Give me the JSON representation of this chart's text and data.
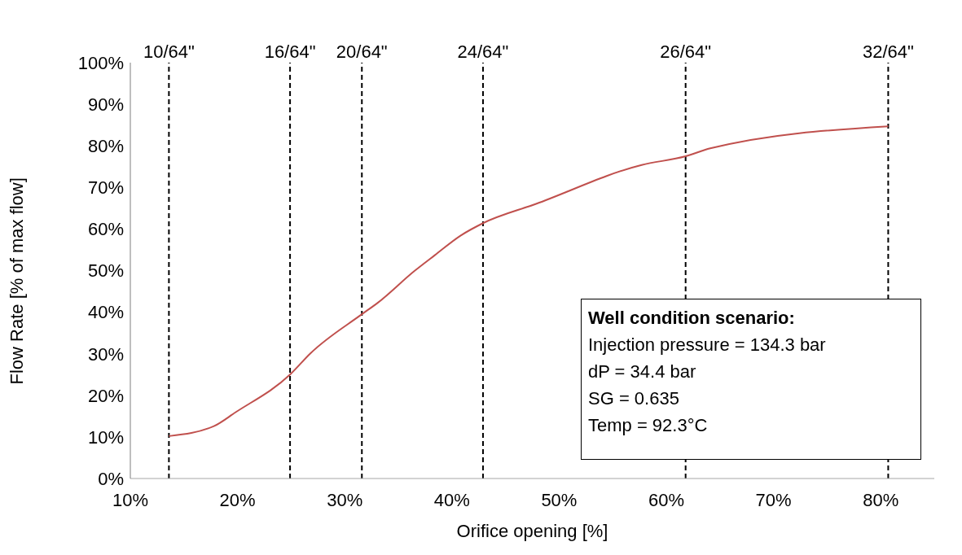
{
  "chart_data": {
    "type": "line",
    "xlabel": "Orifice opening [%]",
    "ylabel": "Flow Rate [% of max flow]",
    "x": [
      13.6,
      17.8,
      19.8,
      24.9,
      26.8,
      31.6,
      33.1,
      36.5,
      38.4,
      40.8,
      42.9,
      47.8,
      57.7,
      61.8,
      64.1,
      80.7
    ],
    "series": [
      {
        "color": "#c0504d",
        "values": [
          10.2,
          12.6,
          15.9,
          25.0,
          30.1,
          39.5,
          42.3,
          49.9,
          53.7,
          58.4,
          61.4,
          66.0,
          75.4,
          77.5,
          79.4,
          84.7
        ]
      }
    ],
    "xlim": [
      10,
      85
    ],
    "ylim": [
      0,
      100
    ],
    "xticks": [
      {
        "value": 10,
        "label": "10%"
      },
      {
        "value": 20,
        "label": "20%"
      },
      {
        "value": 30,
        "label": "30%"
      },
      {
        "value": 40,
        "label": "40%"
      },
      {
        "value": 50,
        "label": "50%"
      },
      {
        "value": 60,
        "label": "60%"
      },
      {
        "value": 70,
        "label": "70%"
      },
      {
        "value": 80,
        "label": "80%"
      }
    ],
    "yticks": [
      {
        "value": 0,
        "label": "0%"
      },
      {
        "value": 10,
        "label": "10%"
      },
      {
        "value": 20,
        "label": "20%"
      },
      {
        "value": 30,
        "label": "30%"
      },
      {
        "value": 40,
        "label": "40%"
      },
      {
        "value": 50,
        "label": "50%"
      },
      {
        "value": 60,
        "label": "60%"
      },
      {
        "value": 70,
        "label": "70%"
      },
      {
        "value": 80,
        "label": "80%"
      },
      {
        "value": 90,
        "label": "90%"
      },
      {
        "value": 100,
        "label": "100%"
      }
    ],
    "ref_lines": [
      {
        "axis": "x",
        "value": 13.6,
        "color": "#000000",
        "line_style": "dashed"
      },
      {
        "axis": "x",
        "value": 24.9,
        "color": "#000000",
        "line_style": "dashed"
      },
      {
        "axis": "x",
        "value": 31.6,
        "color": "#000000",
        "line_style": "dashed"
      },
      {
        "axis": "x",
        "value": 42.9,
        "color": "#000000",
        "line_style": "dashed"
      },
      {
        "axis": "x",
        "value": 61.8,
        "color": "#000000",
        "line_style": "dashed"
      },
      {
        "axis": "x",
        "value": 80.7,
        "color": "#000000",
        "line_style": "dashed"
      }
    ],
    "annotations": [
      {
        "text": "10/64\"",
        "x": 13.6,
        "y": 100
      },
      {
        "text": "16/64\"",
        "x": 24.9,
        "y": 100
      },
      {
        "text": "20/64\"",
        "x": 31.6,
        "y": 100
      },
      {
        "text": "24/64\"",
        "x": 42.9,
        "y": 100
      },
      {
        "text": "26/64\"",
        "x": 61.8,
        "y": 100
      },
      {
        "text": "32/64\"",
        "x": 80.7,
        "y": 100
      },
      "Well condition scenario:",
      "Injection pressure = 134.3 bar",
      "dP = 34.4 bar",
      "SG = 0.635",
      "Temp = 92.3°C"
    ],
    "grid": false,
    "marker": "none",
    "line_style": "solid"
  }
}
